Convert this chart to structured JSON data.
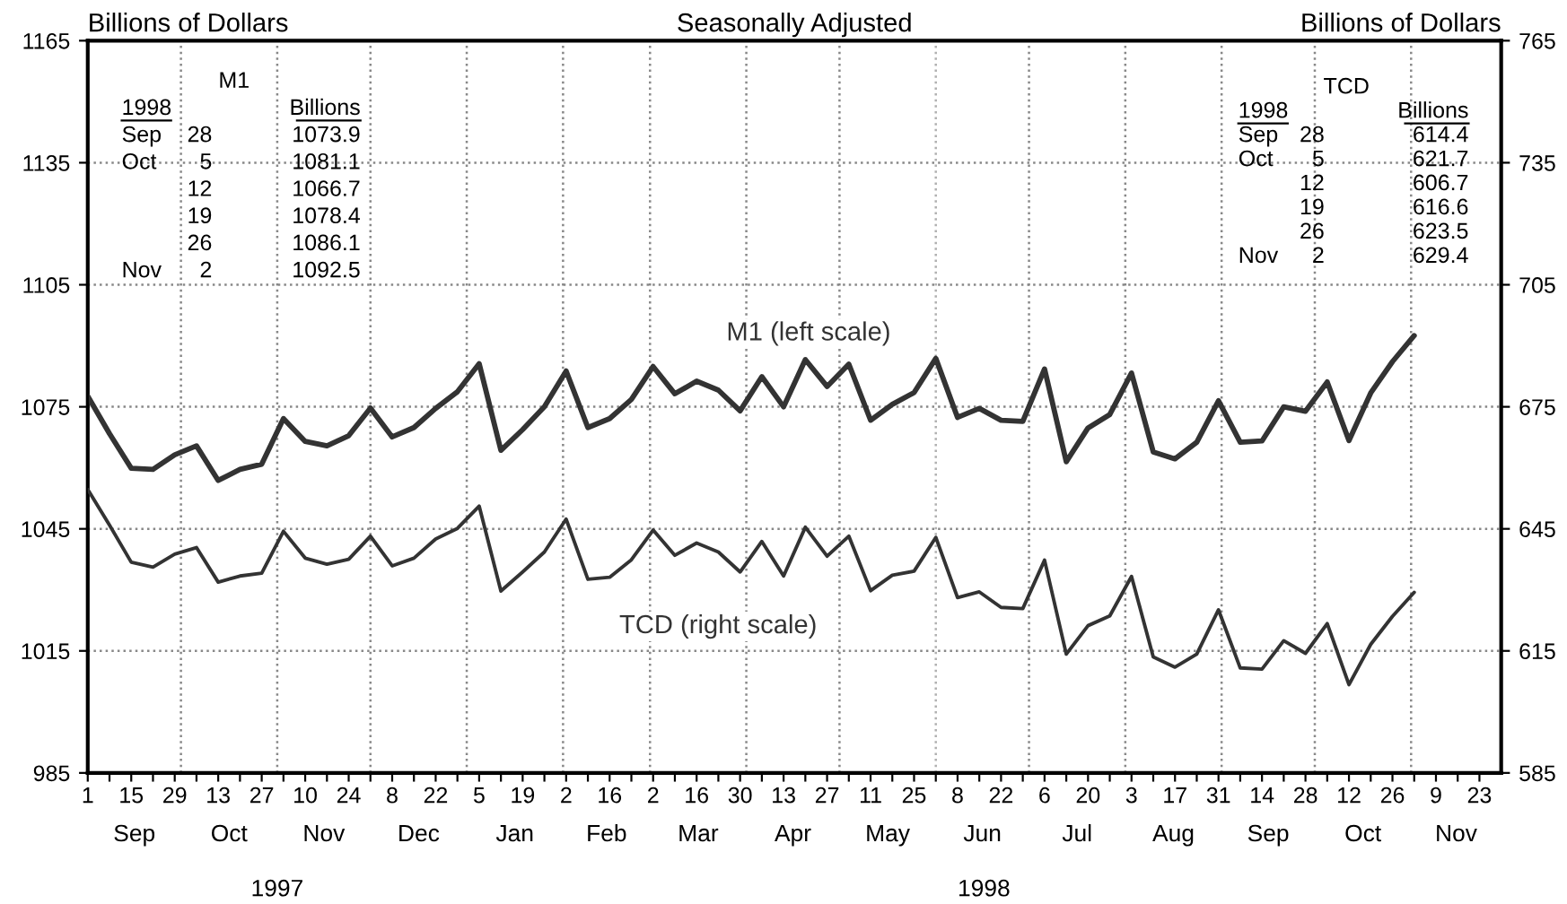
{
  "chart_data": {
    "type": "line",
    "title": "Seasonally Adjusted",
    "ylabel": "Billions of Dollars",
    "y2label": "Billions of Dollars",
    "x": [
      "1997-09-01",
      "1997-09-08",
      "1997-09-15",
      "1997-09-22",
      "1997-09-29",
      "1997-10-06",
      "1997-10-13",
      "1997-10-20",
      "1997-10-27",
      "1997-11-03",
      "1997-11-10",
      "1997-11-17",
      "1997-11-24",
      "1997-12-01",
      "1997-12-08",
      "1997-12-15",
      "1997-12-22",
      "1997-12-29",
      "1998-01-05",
      "1998-01-12",
      "1998-01-19",
      "1998-01-26",
      "1998-02-02",
      "1998-02-09",
      "1998-02-16",
      "1998-02-23",
      "1998-03-02",
      "1998-03-09",
      "1998-03-16",
      "1998-03-23",
      "1998-03-30",
      "1998-04-06",
      "1998-04-13",
      "1998-04-20",
      "1998-04-27",
      "1998-05-04",
      "1998-05-11",
      "1998-05-18",
      "1998-05-25",
      "1998-06-01",
      "1998-06-08",
      "1998-06-15",
      "1998-06-22",
      "1998-06-29",
      "1998-07-06",
      "1998-07-13",
      "1998-07-20",
      "1998-07-27",
      "1998-08-03",
      "1998-08-10",
      "1998-08-17",
      "1998-08-24",
      "1998-08-31",
      "1998-09-07",
      "1998-09-14",
      "1998-09-21",
      "1998-09-28",
      "1998-10-05",
      "1998-10-12",
      "1998-10-19",
      "1998-10-26",
      "1998-11-02"
    ],
    "series": [
      {
        "name": "M1 (left scale)",
        "color": "#333333",
        "values": [
          1077.6,
          1068.4,
          1059.9,
          1059.6,
          1063.2,
          1065.4,
          1056.9,
          1059.6,
          1060.9,
          1072.1,
          1066.5,
          1065.4,
          1067.9,
          1074.7,
          1067.6,
          1069.9,
          1074.6,
          1078.7,
          1085.6,
          1064.3,
          1069.4,
          1075.0,
          1083.8,
          1069.9,
          1072.1,
          1076.8,
          1084.9,
          1078.2,
          1081.3,
          1079.1,
          1074.0,
          1082.4,
          1075.0,
          1086.6,
          1080.0,
          1085.5,
          1071.7,
          1075.6,
          1078.5,
          1086.9,
          1072.4,
          1074.6,
          1071.7,
          1071.4,
          1084.3,
          1061.5,
          1069.8,
          1073.1,
          1083.3,
          1063.9,
          1062.2,
          1066.3,
          1076.5,
          1066.3,
          1066.6,
          1075.0,
          1073.9,
          1081.1,
          1066.7,
          1078.4,
          1086.1,
          1092.5
        ]
      },
      {
        "name": "TCD (right scale)",
        "color": "#333333",
        "axis": "y2",
        "values": [
          654.7,
          645.9,
          636.8,
          635.6,
          638.8,
          640.4,
          631.9,
          633.4,
          634.1,
          644.4,
          637.8,
          636.3,
          637.5,
          643.2,
          635.9,
          637.8,
          642.5,
          645.1,
          650.6,
          629.7,
          634.4,
          639.3,
          647.4,
          632.6,
          633.1,
          637.4,
          644.7,
          638.5,
          641.5,
          639.3,
          634.4,
          641.9,
          633.4,
          645.4,
          638.3,
          643.2,
          629.8,
          633.6,
          634.6,
          642.9,
          628.1,
          629.5,
          625.7,
          625.4,
          637.3,
          614.2,
          621.2,
          623.6,
          633.3,
          613.5,
          611.0,
          614.2,
          625.1,
          610.8,
          610.5,
          617.5,
          614.4,
          621.7,
          606.7,
          616.6,
          623.5,
          629.4
        ]
      }
    ],
    "xlim": [
      "1997-09-01",
      "1998-11-30"
    ],
    "xticks": [
      {
        "value": "1997-09-01",
        "label": "1"
      },
      {
        "value": "1997-09-08",
        "label": null
      },
      {
        "value": "1997-09-15",
        "label": "15"
      },
      {
        "value": "1997-09-22",
        "label": null
      },
      {
        "value": "1997-09-29",
        "label": "29"
      },
      {
        "value": "1997-10-06",
        "label": null
      },
      {
        "value": "1997-10-13",
        "label": "13"
      },
      {
        "value": "1997-10-20",
        "label": null
      },
      {
        "value": "1997-10-27",
        "label": "27"
      },
      {
        "value": "1997-11-03",
        "label": null
      },
      {
        "value": "1997-11-10",
        "label": "10"
      },
      {
        "value": "1997-11-17",
        "label": null
      },
      {
        "value": "1997-11-24",
        "label": "24"
      },
      {
        "value": "1997-12-01",
        "label": null
      },
      {
        "value": "1997-12-08",
        "label": "8"
      },
      {
        "value": "1997-12-15",
        "label": null
      },
      {
        "value": "1997-12-22",
        "label": "22"
      },
      {
        "value": "1997-12-29",
        "label": null
      },
      {
        "value": "1998-01-05",
        "label": "5"
      },
      {
        "value": "1998-01-12",
        "label": null
      },
      {
        "value": "1998-01-19",
        "label": "19"
      },
      {
        "value": "1998-01-26",
        "label": null
      },
      {
        "value": "1998-02-02",
        "label": "2"
      },
      {
        "value": "1998-02-09",
        "label": null
      },
      {
        "value": "1998-02-16",
        "label": "16"
      },
      {
        "value": "1998-02-23",
        "label": null
      },
      {
        "value": "1998-03-02",
        "label": "2"
      },
      {
        "value": "1998-03-09",
        "label": null
      },
      {
        "value": "1998-03-16",
        "label": "16"
      },
      {
        "value": "1998-03-23",
        "label": null
      },
      {
        "value": "1998-03-30",
        "label": "30"
      },
      {
        "value": "1998-04-06",
        "label": null
      },
      {
        "value": "1998-04-13",
        "label": "13"
      },
      {
        "value": "1998-04-20",
        "label": null
      },
      {
        "value": "1998-04-27",
        "label": "27"
      },
      {
        "value": "1998-05-04",
        "label": null
      },
      {
        "value": "1998-05-11",
        "label": "11"
      },
      {
        "value": "1998-05-18",
        "label": null
      },
      {
        "value": "1998-05-25",
        "label": "25"
      },
      {
        "value": "1998-06-01",
        "label": null
      },
      {
        "value": "1998-06-08",
        "label": "8"
      },
      {
        "value": "1998-06-15",
        "label": null
      },
      {
        "value": "1998-06-22",
        "label": "22"
      },
      {
        "value": "1998-06-29",
        "label": null
      },
      {
        "value": "1998-07-06",
        "label": "6"
      },
      {
        "value": "1998-07-13",
        "label": null
      },
      {
        "value": "1998-07-20",
        "label": "20"
      },
      {
        "value": "1998-07-27",
        "label": null
      },
      {
        "value": "1998-08-03",
        "label": "3"
      },
      {
        "value": "1998-08-10",
        "label": null
      },
      {
        "value": "1998-08-17",
        "label": "17"
      },
      {
        "value": "1998-08-24",
        "label": null
      },
      {
        "value": "1998-08-31",
        "label": "31"
      },
      {
        "value": "1998-09-07",
        "label": null
      },
      {
        "value": "1998-09-14",
        "label": "14"
      },
      {
        "value": "1998-09-21",
        "label": null
      },
      {
        "value": "1998-09-28",
        "label": "28"
      },
      {
        "value": "1998-10-05",
        "label": null
      },
      {
        "value": "1998-10-12",
        "label": "12"
      },
      {
        "value": "1998-10-19",
        "label": null
      },
      {
        "value": "1998-10-26",
        "label": "26"
      },
      {
        "value": "1998-11-02",
        "label": null
      },
      {
        "value": "1998-11-09",
        "label": "9"
      },
      {
        "value": "1998-11-16",
        "label": null
      },
      {
        "value": "1998-11-23",
        "label": "23"
      }
    ],
    "ylim": [
      985,
      1165
    ],
    "yticks": [
      985,
      1015,
      1045,
      1075,
      1105,
      1135,
      1165
    ],
    "y2lim": [
      585,
      765
    ],
    "y2ticks": [
      585,
      615,
      645,
      675,
      705,
      735,
      765
    ],
    "grid": "y",
    "line_style": "solid",
    "marker": "none",
    "legend": false,
    "ref_lines": [
      {
        "axis": "x",
        "value": "1997-10-01",
        "color": "#888888",
        "line_style": "dotted"
      },
      {
        "axis": "x",
        "value": "1997-11-01",
        "color": "#888888",
        "line_style": "dotted"
      },
      {
        "axis": "x",
        "value": "1997-12-01",
        "color": "#888888",
        "line_style": "dotted"
      },
      {
        "axis": "x",
        "value": "1998-01-01",
        "color": "#888888",
        "line_style": "dotted"
      },
      {
        "axis": "x",
        "value": "1998-02-01",
        "color": "#888888",
        "line_style": "dotted"
      },
      {
        "axis": "x",
        "value": "1998-03-01",
        "color": "#888888",
        "line_style": "dotted"
      },
      {
        "axis": "x",
        "value": "1998-04-01",
        "color": "#888888",
        "line_style": "dotted"
      },
      {
        "axis": "x",
        "value": "1998-05-01",
        "color": "#888888",
        "line_style": "dotted"
      },
      {
        "axis": "x",
        "value": "1998-06-01",
        "color": "#b0b0b0",
        "line_style": "dotted"
      },
      {
        "axis": "x",
        "value": "1998-07-01",
        "color": "#888888",
        "line_style": "dotted"
      },
      {
        "axis": "x",
        "value": "1998-08-01",
        "color": "#888888",
        "line_style": "dotted"
      },
      {
        "axis": "x",
        "value": "1998-09-01",
        "color": "#888888",
        "line_style": "dotted"
      },
      {
        "axis": "x",
        "value": "1998-10-01",
        "color": "#888888",
        "line_style": "dotted"
      },
      {
        "axis": "x",
        "value": "1998-11-01",
        "color": "#888888",
        "line_style": "dotted"
      }
    ],
    "annotations": [
      "Sep",
      "Oct",
      "Nov",
      "Dec",
      "Jan",
      "Feb",
      "Mar",
      "Apr",
      "May",
      "Jun",
      "Jul",
      "Aug",
      "Sep",
      "Oct",
      "Nov",
      "1997",
      "1998",
      "M1\n1998\t\tBillions\nSep\t28\t1073.9\nOct\t5\t1081.1\n\t12\t1066.7\n\t19\t1078.4\n\t26\t1086.1\nNov\t2\t1092.5",
      "TCD\n1998\t\tBillions\nSep\t28\t614.4\nOct\t5\t621.7\n\t12\t606.7\n\t19\t616.6\n\t26\t623.5\nNov\t2\t629.4"
    ]
  }
}
